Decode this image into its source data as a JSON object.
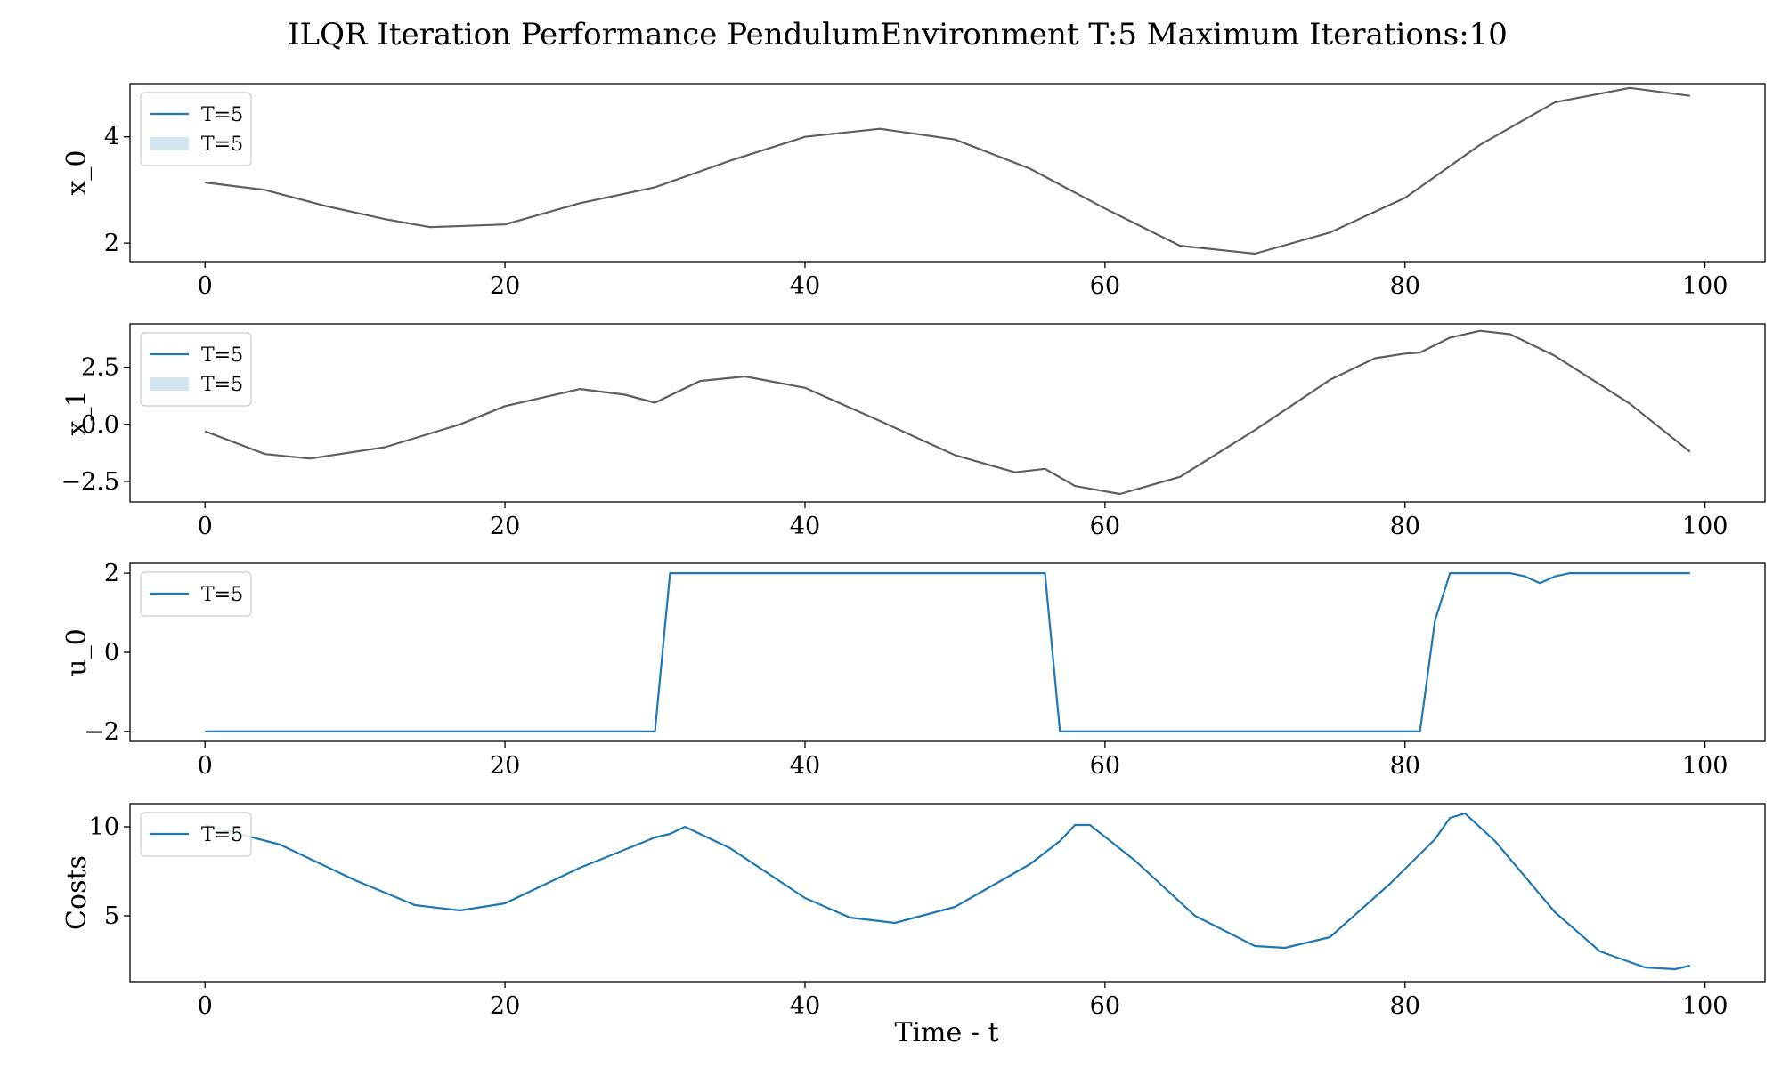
{
  "title": "ILQR Iteration Performance PendulumEnvironment T:5 Maximum Iterations:10",
  "xlabel": "Time - t",
  "colors": {
    "line": "#1f77b4",
    "band": "#1f77b4",
    "band_opacity": 0.2,
    "mean_line": "#5e5e66"
  },
  "chart_data": [
    {
      "type": "line",
      "ylabel": "x_0",
      "xlim": [
        -5,
        104
      ],
      "ylim": [
        1.65,
        5.0
      ],
      "xticks": [
        0,
        20,
        40,
        60,
        80,
        100
      ],
      "yticks": [
        2,
        4
      ],
      "ytick_labels": [
        "2",
        "4"
      ],
      "legend_position": "upper left",
      "legend": [
        {
          "label": "T=5",
          "kind": "line"
        },
        {
          "label": "T=5",
          "kind": "band"
        }
      ],
      "series": [
        {
          "name": "T=5",
          "x": [
            0,
            4,
            8,
            12,
            15,
            20,
            25,
            30,
            35,
            40,
            45,
            50,
            55,
            60,
            65,
            70,
            75,
            80,
            85,
            90,
            95,
            99
          ],
          "y": [
            3.14,
            3.0,
            2.7,
            2.45,
            2.3,
            2.35,
            2.75,
            3.05,
            3.55,
            4.0,
            4.15,
            3.95,
            3.4,
            2.65,
            1.95,
            1.8,
            2.2,
            2.85,
            3.85,
            4.65,
            4.92,
            4.77
          ]
        }
      ]
    },
    {
      "type": "line",
      "ylabel": "x_1",
      "xlim": [
        -5,
        104
      ],
      "ylim": [
        -3.4,
        4.4
      ],
      "xticks": [
        0,
        20,
        40,
        60,
        80,
        100
      ],
      "yticks": [
        -2.5,
        0.0,
        2.5
      ],
      "ytick_labels": [
        "−2.5",
        "0.0",
        "2.5"
      ],
      "legend_position": "upper left",
      "legend": [
        {
          "label": "T=5",
          "kind": "line"
        },
        {
          "label": "T=5",
          "kind": "band"
        }
      ],
      "series": [
        {
          "name": "T=5",
          "x": [
            0,
            4,
            7,
            12,
            17,
            20,
            25,
            28,
            30,
            33,
            36,
            40,
            45,
            50,
            54,
            56,
            58,
            61,
            65,
            70,
            75,
            78,
            80,
            81,
            83,
            85,
            87,
            90,
            95,
            99
          ],
          "y": [
            -0.3,
            -1.3,
            -1.5,
            -1.0,
            0.0,
            0.8,
            1.55,
            1.3,
            0.95,
            1.9,
            2.1,
            1.6,
            0.15,
            -1.35,
            -2.1,
            -1.95,
            -2.7,
            -3.05,
            -2.3,
            -0.25,
            1.95,
            2.9,
            3.1,
            3.15,
            3.8,
            4.1,
            3.95,
            3.0,
            0.9,
            -1.2
          ]
        }
      ]
    },
    {
      "type": "line",
      "ylabel": "u_0",
      "xlim": [
        -5,
        104
      ],
      "ylim": [
        -2.25,
        2.25
      ],
      "xticks": [
        0,
        20,
        40,
        60,
        80,
        100
      ],
      "yticks": [
        -2,
        0,
        2
      ],
      "ytick_labels": [
        "−2",
        "0",
        "2"
      ],
      "legend_position": "upper left",
      "legend": [
        {
          "label": "T=5",
          "kind": "line"
        }
      ],
      "series": [
        {
          "name": "T=5",
          "x": [
            0,
            30,
            31,
            56,
            57,
            81,
            82,
            83,
            87,
            88,
            89,
            90,
            91,
            99
          ],
          "y": [
            -2,
            -2,
            2,
            2,
            -2,
            -2,
            0.8,
            2,
            2,
            1.92,
            1.75,
            1.92,
            2,
            2
          ]
        }
      ]
    },
    {
      "type": "line",
      "ylabel": "Costs",
      "xlim": [
        -5,
        104
      ],
      "ylim": [
        1.3,
        11.3
      ],
      "xticks": [
        0,
        20,
        40,
        60,
        80,
        100
      ],
      "yticks": [
        5,
        10
      ],
      "ytick_labels": [
        "5",
        "10"
      ],
      "legend_position": "upper left",
      "legend": [
        {
          "label": "T=5",
          "kind": "line"
        }
      ],
      "series": [
        {
          "name": "T=5",
          "x": [
            0,
            5,
            10,
            14,
            17,
            20,
            25,
            30,
            31,
            32,
            35,
            40,
            43,
            46,
            50,
            55,
            57,
            58,
            59,
            62,
            66,
            70,
            72,
            75,
            79,
            82,
            83,
            84,
            86,
            90,
            93,
            96,
            98,
            99
          ],
          "y": [
            10.1,
            9.0,
            7.0,
            5.6,
            5.3,
            5.7,
            7.7,
            9.4,
            9.6,
            10.0,
            8.8,
            6.0,
            4.9,
            4.6,
            5.5,
            7.9,
            9.2,
            10.1,
            10.1,
            8.1,
            5.0,
            3.3,
            3.2,
            3.8,
            6.8,
            9.3,
            10.5,
            10.75,
            9.2,
            5.2,
            3.0,
            2.1,
            2.0,
            2.2
          ]
        }
      ]
    }
  ]
}
